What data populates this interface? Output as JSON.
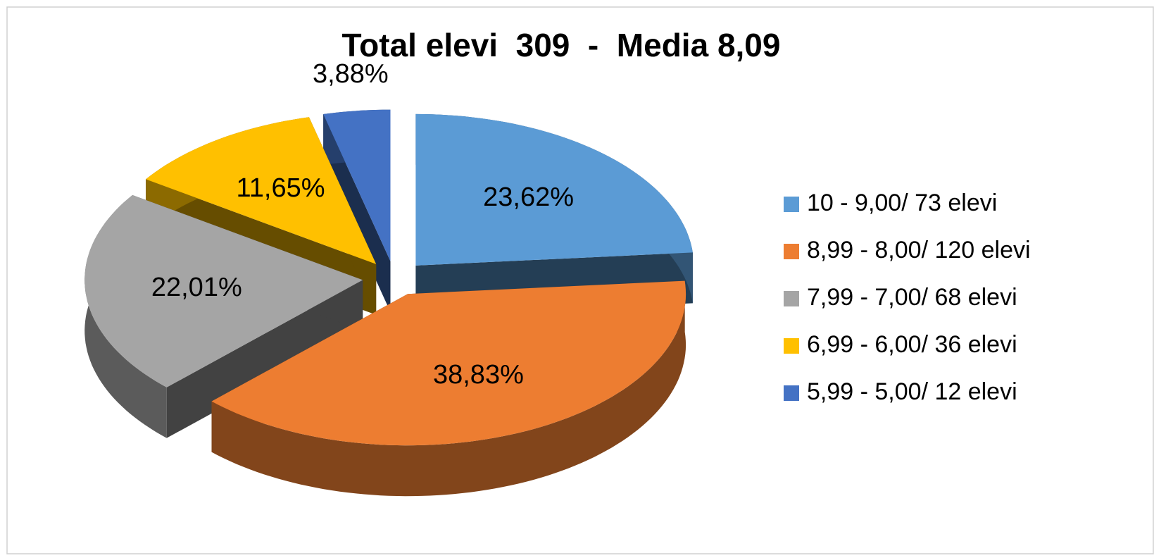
{
  "chart_data": {
    "type": "pie",
    "title": "Total elevi  309  -  Media 8,09",
    "categories": [
      "10 - 9,00/ 73 elevi",
      "8,99 - 8,00/ 120 elevi",
      "7,99 - 7,00/ 68 elevi",
      "6,99 - 6,00/ 36 elevi",
      "5,99 - 5,00/ 12 elevi"
    ],
    "values": [
      23.62,
      38.83,
      22.01,
      11.65,
      3.88
    ],
    "value_labels": [
      "23,62%",
      "38,83%",
      "22,01%",
      "11,65%",
      "3,88%"
    ],
    "colors": [
      "#5b9bd5",
      "#ed7d31",
      "#a5a5a5",
      "#ffc000",
      "#4472c4"
    ],
    "legend": "right"
  }
}
